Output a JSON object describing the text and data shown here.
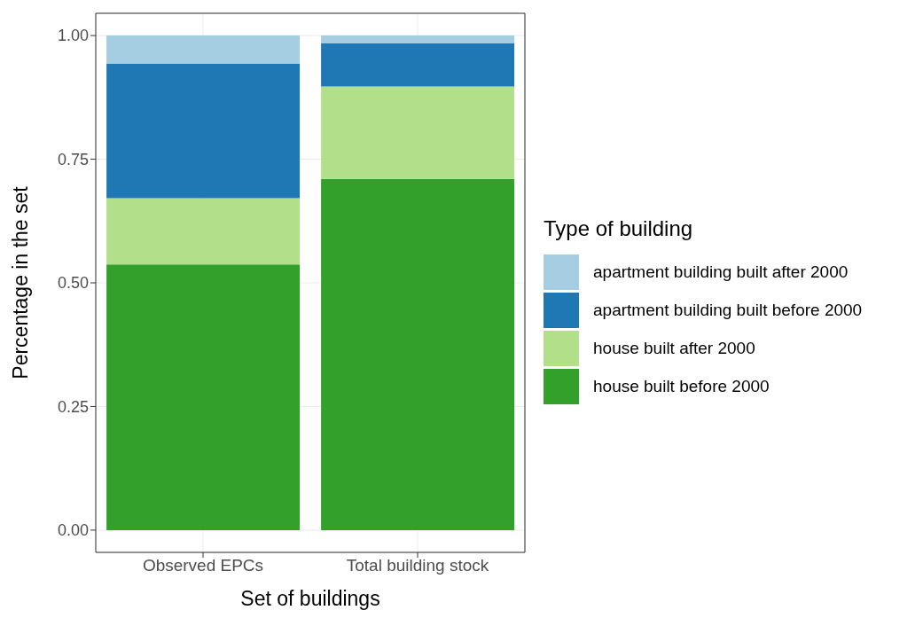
{
  "chart_data": {
    "type": "bar",
    "stacked": true,
    "xlabel": "Set of buildings",
    "ylabel": "Percentage in the set",
    "legend_title": "Type of building",
    "legend": "right",
    "grid": true,
    "categories": [
      "Observed EPCs",
      "Total building stock"
    ],
    "series": [
      {
        "name": "house built before 2000",
        "color": "#33a02c",
        "values": [
          0.537,
          0.71
        ]
      },
      {
        "name": "house built after 2000",
        "color": "#b2df8a",
        "values": [
          0.134,
          0.187
        ]
      },
      {
        "name": "apartment building built before 2000",
        "color": "#1f78b4",
        "values": [
          0.272,
          0.087
        ]
      },
      {
        "name": "apartment building built after 2000",
        "color": "#a6cee3",
        "values": [
          0.057,
          0.016
        ]
      }
    ],
    "ylim": [
      -0.045,
      1.045
    ],
    "yticks": [
      {
        "value": 0,
        "label": "0.00"
      },
      {
        "value": 0.25,
        "label": "0.25"
      },
      {
        "value": 0.5,
        "label": "0.50"
      },
      {
        "value": 0.75,
        "label": "0.75"
      },
      {
        "value": 1,
        "label": "1.00"
      }
    ]
  }
}
